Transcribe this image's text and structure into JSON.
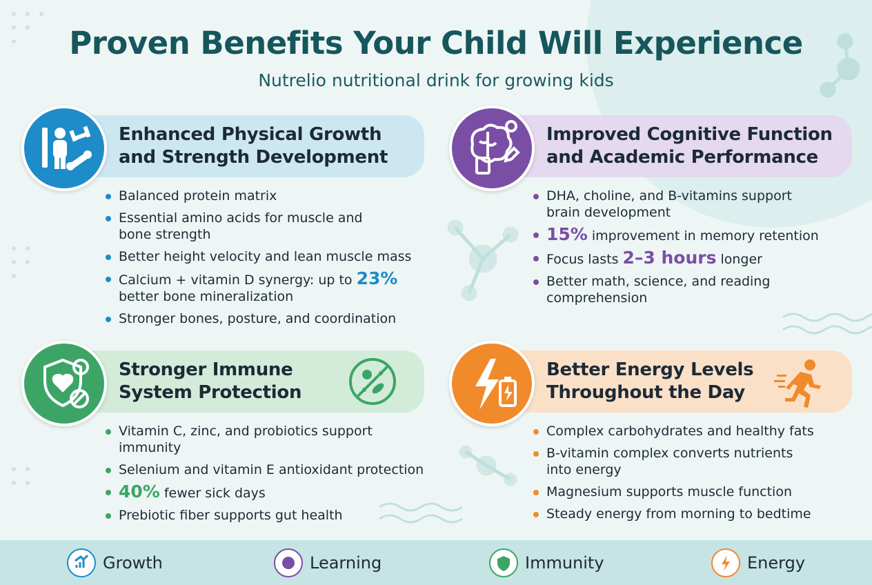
{
  "header": {
    "title": "Proven Benefits Your Child Will Experience",
    "subtitle": "Nutrelio nutritional drink for growing kids"
  },
  "sections": [
    {
      "title_lines": [
        "Enhanced Physical Growth",
        "and Strength Development"
      ],
      "color": "#1d8cc8",
      "tint": "#cde7f2",
      "bullets": [
        [
          [
            "Balanced protein matrix"
          ]
        ],
        [
          [
            "Essential amino acids for muscle and"
          ],
          [
            "bone strength"
          ]
        ],
        [
          [
            "Better height velocity and lean muscle mass"
          ]
        ],
        [
          [
            "Calcium + vitamin D synergy: up to",
            {
              "em": "23%"
            }
          ],
          [
            "better bone mineralization"
          ]
        ],
        [
          [
            "Stronger bones, posture, and coordination"
          ]
        ]
      ]
    },
    {
      "title_lines": [
        "Improved Cognitive Function",
        "and Academic Performance"
      ],
      "color": "#7a4ea5",
      "tint": "#e4d9ee",
      "bullets": [
        [
          [
            "DHA, choline, and B-vitamins support"
          ],
          [
            "brain development"
          ]
        ],
        [
          [
            {
              "em": "15%"
            },
            "improvement in memory retention"
          ]
        ],
        [
          [
            "Focus lasts",
            {
              "em": "2–3 hours"
            },
            "longer"
          ]
        ],
        [
          [
            "Better math, science, and reading"
          ],
          [
            "comprehension"
          ]
        ]
      ]
    },
    {
      "title_lines": [
        "Stronger Immune",
        "System Protection"
      ],
      "color": "#3ca566",
      "tint": "#d3ecd9",
      "bullets": [
        [
          [
            "Vitamin C, zinc, and probiotics support"
          ],
          [
            "immunity"
          ]
        ],
        [
          [
            "Selenium and vitamin E antioxidant protection"
          ]
        ],
        [
          [
            {
              "em": "40%"
            },
            "fewer sick days"
          ]
        ],
        [
          [
            "Prebiotic fiber supports gut health"
          ]
        ]
      ]
    },
    {
      "title_lines": [
        "Better Energy Levels",
        "Throughout the Day"
      ],
      "color": "#f08a2b",
      "tint": "#fbe0c8",
      "bullets": [
        [
          [
            "Complex carbohydrates and healthy fats"
          ]
        ],
        [
          [
            "B-vitamin complex converts nutrients"
          ],
          [
            "into energy"
          ]
        ],
        [
          [
            "Magnesium supports muscle function"
          ]
        ],
        [
          [
            "Steady energy from morning to bedtime"
          ]
        ]
      ]
    }
  ],
  "footer": {
    "items": [
      "Growth",
      "Learning",
      "Immunity",
      "Energy"
    ]
  }
}
